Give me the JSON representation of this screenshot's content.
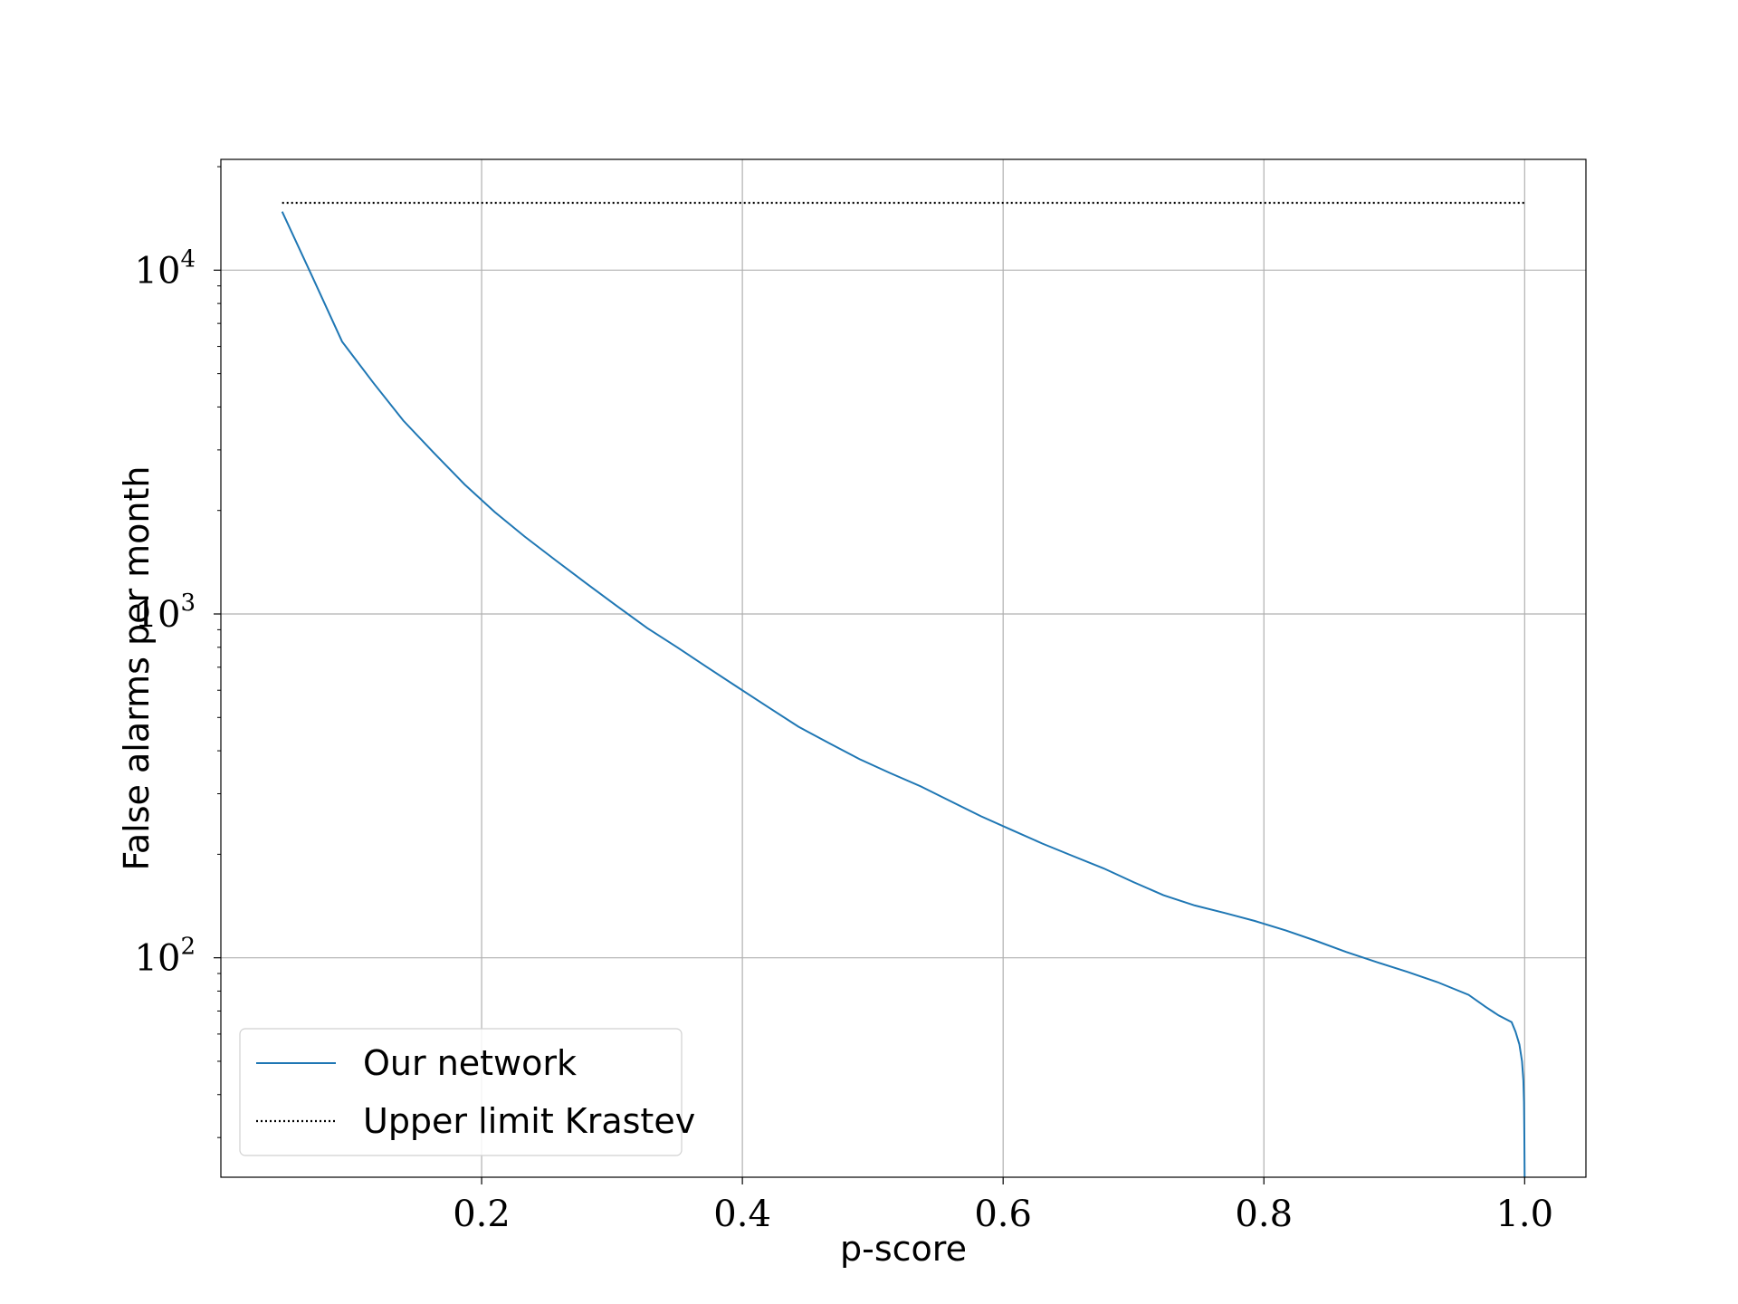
{
  "chart_data": {
    "type": "line",
    "title": "",
    "xlabel": "p-score",
    "ylabel": "False alarms per month",
    "xlim": [
      0.0,
      1.047
    ],
    "ylim": [
      23,
      21000
    ],
    "yscale": "log",
    "grid": true,
    "legend_position": "lower-left",
    "x_ticks": [
      {
        "value": 0.2,
        "label": "0.2"
      },
      {
        "value": 0.4,
        "label": "0.4"
      },
      {
        "value": 0.6,
        "label": "0.6"
      },
      {
        "value": 0.8,
        "label": "0.8"
      },
      {
        "value": 1.0,
        "label": "1.0"
      }
    ],
    "y_ticks": [
      {
        "value": 100,
        "base": "10",
        "exp": "2"
      },
      {
        "value": 1000,
        "base": "10",
        "exp": "3"
      },
      {
        "value": 10000,
        "base": "10",
        "exp": "4"
      }
    ],
    "series": [
      {
        "name": "Our network",
        "color": "#1f77b4",
        "style": "solid",
        "x": [
          0.047,
          0.07,
          0.093,
          0.117,
          0.14,
          0.163,
          0.187,
          0.21,
          0.233,
          0.257,
          0.28,
          0.303,
          0.327,
          0.35,
          0.373,
          0.397,
          0.42,
          0.443,
          0.467,
          0.49,
          0.513,
          0.537,
          0.56,
          0.583,
          0.607,
          0.63,
          0.653,
          0.677,
          0.7,
          0.723,
          0.747,
          0.77,
          0.793,
          0.817,
          0.84,
          0.863,
          0.887,
          0.91,
          0.933,
          0.957,
          0.97,
          0.98,
          0.99,
          0.993,
          0.996,
          0.998,
          0.999,
          0.9995,
          0.9998,
          1.0
        ],
        "y": [
          14800,
          9600,
          6200,
          4700,
          3650,
          2950,
          2380,
          1980,
          1680,
          1430,
          1230,
          1060,
          910,
          800,
          700,
          610,
          535,
          470,
          420,
          378,
          345,
          315,
          285,
          258,
          235,
          215,
          198,
          182,
          166,
          152,
          142,
          135,
          128,
          120,
          112,
          104,
          97,
          91,
          85,
          78,
          72,
          68,
          65,
          61,
          56,
          50,
          44,
          38,
          30,
          23
        ]
      },
      {
        "name": "Upper limit Krastev",
        "color": "#000000",
        "style": "dotted",
        "x": [
          0.047,
          1.0
        ],
        "y": [
          15700,
          15700
        ]
      }
    ]
  }
}
